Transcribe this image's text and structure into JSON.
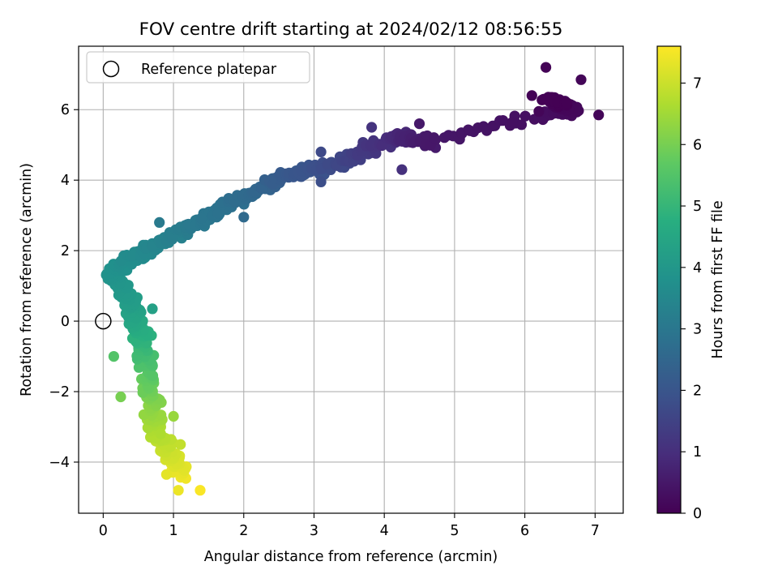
{
  "chart_data": {
    "type": "scatter",
    "title": "FOV centre drift starting at 2024/02/12 08:56:55",
    "xlabel": "Angular distance from reference (arcmin)",
    "ylabel": "Rotation from reference (arcmin)",
    "xlim": [
      -0.35,
      7.4
    ],
    "ylim": [
      -5.45,
      7.8
    ],
    "x_ticks": [
      0,
      1,
      2,
      3,
      4,
      5,
      6,
      7
    ],
    "y_ticks": [
      -4,
      -2,
      0,
      2,
      4,
      6
    ],
    "grid": true,
    "legend_position": "top-left",
    "legend_entries": [
      "Reference platepar"
    ],
    "reference_point": {
      "x": 0,
      "y": 0
    },
    "colorbar": {
      "label": "Hours from first FF file",
      "range": [
        0,
        7.6
      ],
      "ticks": [
        0,
        1,
        2,
        3,
        4,
        5,
        6,
        7
      ],
      "colormap": "viridis"
    },
    "trajectory": [
      {
        "x": 6.55,
        "y": 6.15,
        "t": 0.0
      },
      {
        "x": 6.3,
        "y": 6.3,
        "t": 0.05
      },
      {
        "x": 6.7,
        "y": 6.0,
        "t": 0.15
      },
      {
        "x": 6.5,
        "y": 5.95,
        "t": 0.25
      },
      {
        "x": 4.6,
        "y": 5.1,
        "t": 0.5
      },
      {
        "x": 4.2,
        "y": 5.2,
        "t": 0.85
      },
      {
        "x": 3.8,
        "y": 4.9,
        "t": 1.2
      },
      {
        "x": 3.4,
        "y": 4.5,
        "t": 1.6
      },
      {
        "x": 3.0,
        "y": 4.3,
        "t": 1.9
      },
      {
        "x": 2.6,
        "y": 4.15,
        "t": 2.1
      },
      {
        "x": 2.2,
        "y": 3.7,
        "t": 2.5
      },
      {
        "x": 1.8,
        "y": 3.3,
        "t": 2.8
      },
      {
        "x": 1.4,
        "y": 2.85,
        "t": 3.0
      },
      {
        "x": 1.0,
        "y": 2.45,
        "t": 3.25
      },
      {
        "x": 0.65,
        "y": 2.05,
        "t": 3.5
      },
      {
        "x": 0.35,
        "y": 1.75,
        "t": 3.7
      },
      {
        "x": 0.15,
        "y": 1.35,
        "t": 3.85
      },
      {
        "x": 0.25,
        "y": 1.0,
        "t": 4.0
      },
      {
        "x": 0.4,
        "y": 0.5,
        "t": 4.2
      },
      {
        "x": 0.45,
        "y": 0.0,
        "t": 4.5
      },
      {
        "x": 0.55,
        "y": -0.5,
        "t": 4.9
      },
      {
        "x": 0.6,
        "y": -1.0,
        "t": 5.3
      },
      {
        "x": 0.65,
        "y": -1.6,
        "t": 5.7
      },
      {
        "x": 0.7,
        "y": -2.2,
        "t": 6.1
      },
      {
        "x": 0.72,
        "y": -2.8,
        "t": 6.5
      },
      {
        "x": 0.85,
        "y": -3.4,
        "t": 6.85
      },
      {
        "x": 1.0,
        "y": -3.9,
        "t": 7.15
      },
      {
        "x": 1.15,
        "y": -4.35,
        "t": 7.45
      }
    ],
    "outliers": [
      {
        "x": 6.3,
        "y": 7.2,
        "t": 0.05
      },
      {
        "x": 6.1,
        "y": 6.4,
        "t": 0.05
      },
      {
        "x": 7.05,
        "y": 5.85,
        "t": 0.1
      },
      {
        "x": 6.8,
        "y": 6.85,
        "t": 0.1
      },
      {
        "x": 6.2,
        "y": 5.95,
        "t": 0.1
      },
      {
        "x": 4.73,
        "y": 4.92,
        "t": 0.55
      },
      {
        "x": 4.5,
        "y": 5.6,
        "t": 0.5
      },
      {
        "x": 3.82,
        "y": 5.5,
        "t": 1.1
      },
      {
        "x": 4.25,
        "y": 4.3,
        "t": 1.05
      },
      {
        "x": 3.1,
        "y": 4.8,
        "t": 1.7
      },
      {
        "x": 3.1,
        "y": 3.95,
        "t": 1.8
      },
      {
        "x": 2.0,
        "y": 2.95,
        "t": 2.6
      },
      {
        "x": 0.8,
        "y": 2.8,
        "t": 3.1
      },
      {
        "x": 0.7,
        "y": 0.35,
        "t": 4.3
      },
      {
        "x": 0.15,
        "y": -1.0,
        "t": 5.5
      },
      {
        "x": 0.25,
        "y": -2.15,
        "t": 6.0
      },
      {
        "x": 0.9,
        "y": -4.35,
        "t": 7.3
      },
      {
        "x": 1.07,
        "y": -4.8,
        "t": 7.4
      },
      {
        "x": 1.38,
        "y": -4.8,
        "t": 7.55
      },
      {
        "x": 1.1,
        "y": -3.5,
        "t": 6.9
      },
      {
        "x": 1.0,
        "y": -2.7,
        "t": 6.4
      }
    ],
    "point_count": 900
  }
}
